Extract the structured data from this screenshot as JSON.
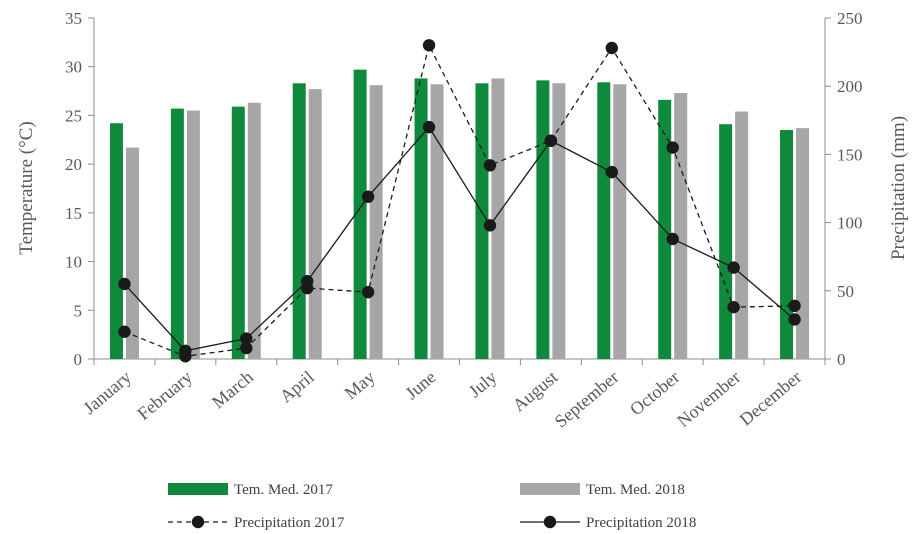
{
  "chart_data": {
    "type": "bar",
    "categories": [
      "January",
      "February",
      "March",
      "April",
      "May",
      "June",
      "July",
      "August",
      "September",
      "October",
      "November",
      "December"
    ],
    "series": [
      {
        "name": "Tem. Med. 2017",
        "kind": "bar",
        "axis": "left",
        "color": "#0f8a3c",
        "values": [
          24.2,
          25.7,
          25.9,
          28.3,
          29.7,
          28.8,
          28.3,
          28.6,
          28.4,
          26.6,
          24.1,
          23.5
        ]
      },
      {
        "name": "Tem. Med. 2018",
        "kind": "bar",
        "axis": "left",
        "color": "#a6a6a6",
        "values": [
          21.7,
          25.5,
          26.3,
          27.7,
          28.1,
          28.2,
          28.8,
          28.3,
          28.2,
          27.3,
          25.4,
          23.7
        ]
      },
      {
        "name": "Precipitation 2017",
        "kind": "line",
        "line_style": "dashed",
        "axis": "right",
        "color": "#1a1a1a",
        "values": [
          20,
          2,
          8,
          52,
          49,
          230,
          142,
          160,
          228,
          155,
          38,
          39
        ]
      },
      {
        "name": "Precipitation 2018",
        "kind": "line",
        "line_style": "solid",
        "axis": "right",
        "color": "#1a1a1a",
        "values": [
          55,
          6,
          15,
          57,
          119,
          170,
          98,
          160,
          137,
          88,
          67,
          29
        ]
      }
    ],
    "ylabel": "Temperature (°C)",
    "ylabel_right": "Precipitation (mm)",
    "ylim": [
      0,
      35
    ],
    "yticks": [
      0,
      5,
      10,
      15,
      20,
      25,
      30,
      35
    ],
    "ylim_right": [
      0,
      250
    ],
    "yticks_right": [
      0,
      50,
      100,
      150,
      200,
      250
    ],
    "grid": false,
    "legend_position": "bottom"
  }
}
